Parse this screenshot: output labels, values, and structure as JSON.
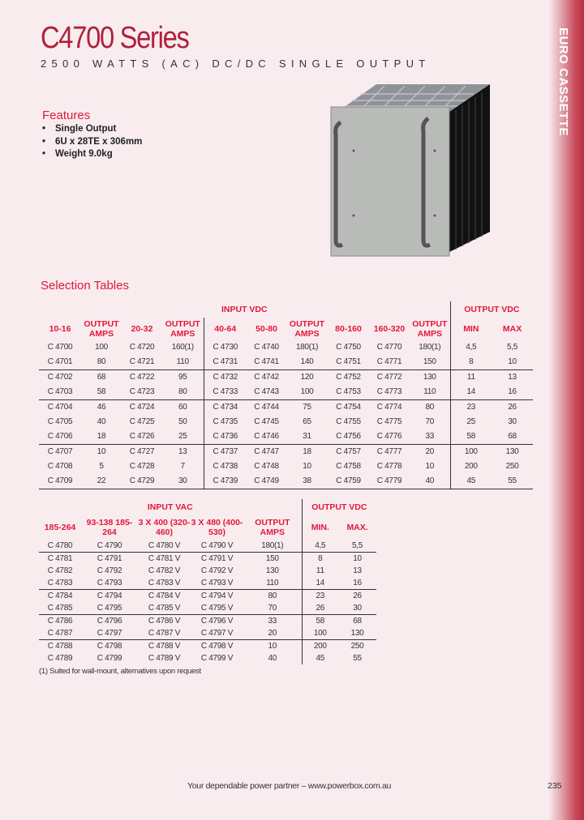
{
  "header": {
    "title": "C4700 Series",
    "subtitle": "2500 WATTS (AC) DC/DC SINGLE OUTPUT",
    "side_tab": "EURO CASSETTE"
  },
  "features": {
    "heading": "Features",
    "items": [
      "Single Output",
      "6U x 28TE x 306mm",
      "Weight 9.0kg"
    ]
  },
  "selection": {
    "heading": "Selection Tables"
  },
  "table_dc": {
    "group_input": "INPUT VDC",
    "group_output": "OUTPUT VDC",
    "columns": [
      "10-16",
      "OUTPUT AMPS",
      "20-32",
      "OUTPUT AMPS",
      "40-64",
      "50-80",
      "OUTPUT AMPS",
      "80-160",
      "160-320",
      "OUTPUT AMPS",
      "MIN",
      "MAX"
    ],
    "rows": [
      [
        "C 4700",
        "100",
        "C 4720",
        "160(1)",
        "C 4730",
        "C 4740",
        "180(1)",
        "C 4750",
        "C 4770",
        "180(1)",
        "4,5",
        "5,5"
      ],
      [
        "C 4701",
        "80",
        "C 4721",
        "110",
        "C 4731",
        "C 4741",
        "140",
        "C 4751",
        "C 4771",
        "150",
        "8",
        "10"
      ],
      [
        "C 4702",
        "68",
        "C 4722",
        "95",
        "C 4732",
        "C 4742",
        "120",
        "C 4752",
        "C 4772",
        "130",
        "11",
        "13"
      ],
      [
        "C 4703",
        "58",
        "C 4723",
        "80",
        "C 4733",
        "C 4743",
        "100",
        "C 4753",
        "C 4773",
        "110",
        "14",
        "16"
      ],
      [
        "C 4704",
        "46",
        "C 4724",
        "60",
        "C 4734",
        "C 4744",
        "75",
        "C 4754",
        "C 4774",
        "80",
        "23",
        "26"
      ],
      [
        "C 4705",
        "40",
        "C 4725",
        "50",
        "C 4735",
        "C 4745",
        "65",
        "C 4755",
        "C 4775",
        "70",
        "25",
        "30"
      ],
      [
        "C 4706",
        "18",
        "C 4726",
        "25",
        "C 4736",
        "C 4746",
        "31",
        "C 4756",
        "C 4776",
        "33",
        "58",
        "68"
      ],
      [
        "C 4707",
        "10",
        "C 4727",
        "13",
        "C 4737",
        "C 4747",
        "18",
        "C 4757",
        "C 4777",
        "20",
        "100",
        "130"
      ],
      [
        "C 4708",
        "5",
        "C 4728",
        "7",
        "C 4738",
        "C 4748",
        "10",
        "C 4758",
        "C 4778",
        "10",
        "200",
        "250"
      ],
      [
        "C 4709",
        "22",
        "C 4729",
        "30",
        "C 4739",
        "C 4749",
        "38",
        "C 4759",
        "C 4779",
        "40",
        "45",
        "55"
      ]
    ]
  },
  "table_ac": {
    "group_input": "INPUT VAC",
    "group_output": "OUTPUT VDC",
    "columns": [
      "185-264",
      "93-138 185-264",
      "3 X 400 (320-460)",
      "3 X 480 (400-530)",
      "OUTPUT AMPS",
      "MIN.",
      "MAX."
    ],
    "rows": [
      [
        "C 4780",
        "C 4790",
        "C 4780 V",
        "C 4790 V",
        "180(1)",
        "4,5",
        "5,5"
      ],
      [
        "C 4781",
        "C 4791",
        "C 4781 V",
        "C 4791 V",
        "150",
        "8",
        "10"
      ],
      [
        "C 4782",
        "C 4792",
        "C 4782 V",
        "C 4792 V",
        "130",
        "11",
        "13"
      ],
      [
        "C 4783",
        "C 4793",
        "C 4783 V",
        "C 4793 V",
        "110",
        "14",
        "16"
      ],
      [
        "C 4784",
        "C 4794",
        "C 4784 V",
        "C 4794 V",
        "80",
        "23",
        "26"
      ],
      [
        "C 4785",
        "C 4795",
        "C 4785 V",
        "C 4795 V",
        "70",
        "26",
        "30"
      ],
      [
        "C 4786",
        "C 4796",
        "C 4786 V",
        "C 4796 V",
        "33",
        "58",
        "68"
      ],
      [
        "C 4787",
        "C 4797",
        "C 4787 V",
        "C 4797 V",
        "20",
        "100",
        "130"
      ],
      [
        "C 4788",
        "C 4798",
        "C 4788 V",
        "C 4798 V",
        "10",
        "200",
        "250"
      ],
      [
        "C 4789",
        "C 4799",
        "C 4789 V",
        "C 4799 V",
        "40",
        "45",
        "55"
      ]
    ],
    "footnote": "(1) Suited for wall-mount, alternatives upon request"
  },
  "footer": {
    "tagline": "Your dependable power partner – www.powerbox.com.au",
    "page_number": "235"
  },
  "colors": {
    "accent": "#e4173a",
    "title": "#b0203a",
    "background": "#f8ecef"
  }
}
